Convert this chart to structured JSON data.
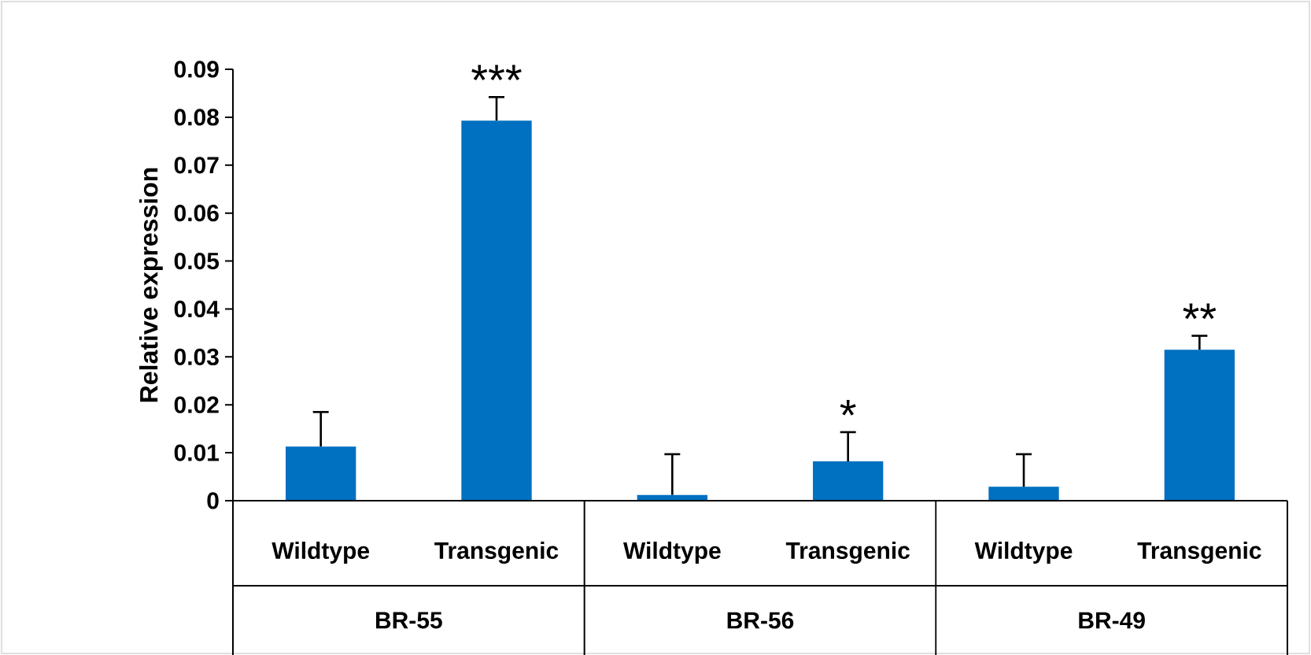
{
  "chart_data": {
    "type": "bar",
    "ylabel": "Relative expression",
    "categories": [
      "Wildtype",
      "Transgenic",
      "Wildtype",
      "Transgenic",
      "Wildtype",
      "Transgenic"
    ],
    "values": [
      0.0113,
      0.0793,
      0.0012,
      0.0082,
      0.0029,
      0.0315
    ],
    "errors": [
      [
        0.0113,
        0.0185
      ],
      [
        0.0793,
        0.0842
      ],
      [
        0.0012,
        0.0097
      ],
      [
        0.0082,
        0.0143
      ],
      [
        0.0029,
        0.0097
      ],
      [
        0.0315,
        0.0344
      ]
    ],
    "value_labels": [
      null,
      "***",
      null,
      "*",
      null,
      "**"
    ],
    "color": "#0070c0",
    "ylim": [
      0,
      0.09
    ],
    "yticks": [
      0,
      0.01,
      0.02,
      0.03,
      0.04,
      0.05,
      0.06,
      0.07,
      0.08,
      0.09
    ],
    "annotations": [
      "BR-55",
      "BR-56",
      "BR-49"
    ]
  }
}
